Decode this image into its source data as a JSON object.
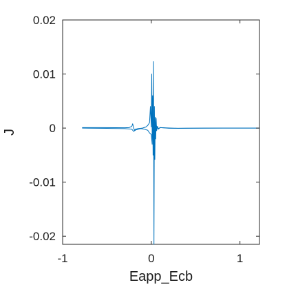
{
  "chart_data": {
    "type": "line",
    "title": "",
    "xlabel": "Eapp_Ecb",
    "ylabel": "J",
    "xlim": [
      -1,
      1.22
    ],
    "ylim": [
      -0.0215,
      0.02
    ],
    "xticks": [
      -1,
      0,
      1
    ],
    "xtick_labels": [
      "-1",
      "0",
      "1"
    ],
    "yticks": [
      -0.02,
      -0.01,
      0,
      0.01,
      0.02
    ],
    "ytick_labels": [
      "-0.02",
      "-0.01",
      "0",
      "0.01",
      "0.02"
    ],
    "grid": false,
    "legend": "none",
    "series": [
      {
        "color": "#0072BD",
        "x": [
          -0.78,
          -0.6,
          -0.4,
          -0.3,
          -0.25,
          -0.22,
          -0.21,
          -0.2,
          -0.19,
          -0.18,
          -0.15,
          -0.1,
          -0.06,
          -0.04,
          -0.02,
          -0.01,
          0.0,
          0.005,
          0.01,
          0.015,
          0.02,
          0.025,
          0.03,
          0.035,
          0.04,
          0.045,
          0.05,
          0.055,
          0.06,
          0.07,
          0.08,
          0.1,
          0.2,
          0.4,
          0.6,
          0.8,
          1.0,
          1.22
        ],
        "y": [
          0.0001,
          0.0001,
          8e-05,
          6e-05,
          0.0001,
          0.0003,
          0.0008,
          0.0001,
          -0.0004,
          -0.0002,
          -0.0001,
          0.0,
          0.0002,
          0.0005,
          0.001,
          0.004,
          0.0002,
          0.01,
          -0.0021,
          0.006,
          -0.005,
          0.0123,
          -0.0215,
          0.004,
          -0.0058,
          0.002,
          -0.002,
          0.0018,
          -0.0005,
          0.0003,
          -0.0001,
          0.0001,
          -3e-05,
          -2e-05,
          -1e-05,
          0.0,
          0.0,
          0.0
        ]
      },
      {
        "color": "#0072BD",
        "x": [
          -0.78,
          -0.5,
          -0.3,
          -0.22,
          -0.2,
          -0.17,
          -0.12,
          -0.08,
          -0.04,
          -0.02,
          0.0,
          0.01,
          0.02,
          0.03,
          0.04,
          0.05,
          0.06,
          0.08,
          0.1,
          0.3,
          0.6,
          1.0,
          1.22
        ],
        "y": [
          0.0,
          -5e-05,
          -0.0001,
          -0.0002,
          -0.0006,
          -0.0003,
          -0.0001,
          -0.0002,
          -0.0004,
          -0.0009,
          -0.0012,
          -0.003,
          0.0025,
          -0.0015,
          0.0009,
          -0.0007,
          0.0004,
          -0.0002,
          0.0001,
          -5e-05,
          0.0,
          0.0,
          0.0
        ]
      }
    ]
  }
}
